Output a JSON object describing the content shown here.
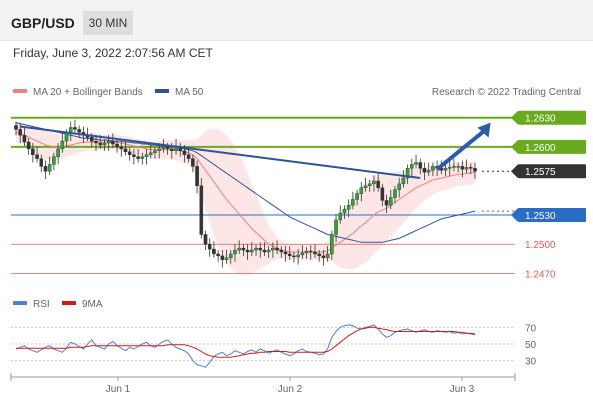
{
  "header": {
    "pair": "GBP/USD",
    "timeframe": "30 MIN"
  },
  "datetime": "Friday, June 3, 2022 2:07:56 AM CET",
  "legend": {
    "ma20_label": "MA 20 + Bollinger Bands",
    "ma50_label": "MA 50",
    "credit": "Research © 2022 Trading Central"
  },
  "colors": {
    "ma20": "#f08080",
    "ma50": "#2d5496",
    "resistance": "#6aaa1e",
    "support_pivot": "#2b6cc4",
    "support": "#e05a5a",
    "current": "#333333",
    "rsi": "#4f7fd8",
    "rsi_ma": "#d11c1c",
    "trend_arrow": "#2a5ca8"
  },
  "rsi_legend": {
    "rsi_label": "RSI",
    "ma_label": "9MA"
  },
  "chart_data": [
    {
      "type": "candlestick",
      "title": "GBP/USD 30 MIN",
      "x_labels": [
        "Jun 1",
        "Jun 2",
        "Jun 3"
      ],
      "ylim": [
        1.2455,
        1.264
      ],
      "levels": [
        {
          "label": "1.2630",
          "value": 1.263,
          "role": "resistance"
        },
        {
          "label": "1.2600",
          "value": 1.26,
          "role": "resistance"
        },
        {
          "label": "1.2575",
          "value": 1.2575,
          "role": "current"
        },
        {
          "label": "1.2530",
          "value": 1.253,
          "role": "pivot"
        },
        {
          "label": "1.2500",
          "value": 1.25,
          "role": "support"
        },
        {
          "label": "1.2470",
          "value": 1.247,
          "role": "support"
        }
      ],
      "close": [
        1.2618,
        1.2612,
        1.2605,
        1.2598,
        1.2592,
        1.2588,
        1.258,
        1.2575,
        1.2582,
        1.259,
        1.2598,
        1.2606,
        1.2614,
        1.262,
        1.2618,
        1.2615,
        1.2612,
        1.261,
        1.2606,
        1.2604,
        1.2602,
        1.2604,
        1.2606,
        1.2603,
        1.26,
        1.2598,
        1.2595,
        1.2592,
        1.259,
        1.2588,
        1.259,
        1.2592,
        1.2594,
        1.2596,
        1.2598,
        1.26,
        1.2598,
        1.2596,
        1.26,
        1.2596,
        1.2592,
        1.2588,
        1.258,
        1.256,
        1.251,
        1.25,
        1.2495,
        1.249,
        1.2488,
        1.2484,
        1.2486,
        1.249,
        1.2494,
        1.2496,
        1.2494,
        1.2492,
        1.2494,
        1.2496,
        1.2494,
        1.2492,
        1.2494,
        1.2496,
        1.2494,
        1.2492,
        1.249,
        1.2488,
        1.2487,
        1.2489,
        1.2491,
        1.2493,
        1.2492,
        1.249,
        1.2488,
        1.2486,
        1.249,
        1.251,
        1.2525,
        1.2532,
        1.2536,
        1.254,
        1.2546,
        1.2552,
        1.2558,
        1.256,
        1.2562,
        1.2565,
        1.2558,
        1.2545,
        1.254,
        1.2548,
        1.2556,
        1.2562,
        1.2568,
        1.2578,
        1.2582,
        1.2584,
        1.2578,
        1.2574,
        1.2576,
        1.258,
        1.2578,
        1.2576,
        1.2578,
        1.2579,
        1.258,
        1.258,
        1.2577,
        1.2579,
        1.2578,
        1.2575
      ],
      "ma20": [
        1.2615,
        1.2614,
        1.2612,
        1.261,
        1.2608,
        1.2606,
        1.2604,
        1.2602,
        1.2601,
        1.26,
        1.26,
        1.26,
        1.2601,
        1.2602,
        1.2603,
        1.2604,
        1.2605,
        1.2605,
        1.2605,
        1.2605,
        1.2605,
        1.2605,
        1.2605,
        1.2605,
        1.2605,
        1.2604,
        1.2603,
        1.2602,
        1.2601,
        1.26,
        1.2599,
        1.2598,
        1.2597,
        1.2597,
        1.2597,
        1.2597,
        1.2597,
        1.2597,
        1.2597,
        1.2596,
        1.2595,
        1.2594,
        1.2592,
        1.2588,
        1.2582,
        1.2576,
        1.257,
        1.2564,
        1.2558,
        1.2552,
        1.2546,
        1.2541,
        1.2536,
        1.2531,
        1.2526,
        1.2521,
        1.2516,
        1.2512,
        1.2508,
        1.2504,
        1.25,
        1.2498,
        1.2496,
        1.2494,
        1.2493,
        1.2492,
        1.2492,
        1.2492,
        1.2492,
        1.2492,
        1.2492,
        1.2492,
        1.2492,
        1.2492,
        1.2493,
        1.2496,
        1.2499,
        1.2502,
        1.2505,
        1.2508,
        1.2511,
        1.2515,
        1.2519,
        1.2522,
        1.2526,
        1.253,
        1.2533,
        1.2535,
        1.2537,
        1.254,
        1.2543,
        1.2546,
        1.2549,
        1.2552,
        1.2555,
        1.2558,
        1.256,
        1.2562,
        1.2564,
        1.2566,
        1.2567,
        1.2568,
        1.2569,
        1.257,
        1.2571,
        1.2572,
        1.2572,
        1.2573,
        1.2573,
        1.2574
      ],
      "ma50": [
        1.2625,
        1.2624,
        1.2623,
        1.2622,
        1.2621,
        1.262,
        1.2619,
        1.2618,
        1.2617,
        1.2616,
        1.2615,
        1.2614,
        1.2613,
        1.2612,
        1.2611,
        1.261,
        1.2609,
        1.2609,
        1.2608,
        1.2608,
        1.2607,
        1.2607,
        1.2607,
        1.2606,
        1.2606,
        1.2606,
        1.2605,
        1.2605,
        1.2604,
        1.2604,
        1.2603,
        1.2603,
        1.2602,
        1.2602,
        1.2601,
        1.2601,
        1.26,
        1.26,
        1.2599,
        1.2599,
        1.2598,
        1.2597,
        1.2596,
        1.2594,
        1.2591,
        1.2588,
        1.2585,
        1.2582,
        1.2579,
        1.2576,
        1.2573,
        1.257,
        1.2567,
        1.2564,
        1.2561,
        1.2558,
        1.2555,
        1.2552,
        1.2549,
        1.2546,
        1.2543,
        1.254,
        1.2537,
        1.2534,
        1.2531,
        1.2528,
        1.2526,
        1.2524,
        1.2522,
        1.252,
        1.2518,
        1.2516,
        1.2514,
        1.2512,
        1.251,
        1.2509,
        1.2508,
        1.2507,
        1.2506,
        1.2505,
        1.2504,
        1.2503,
        1.2502,
        1.2502,
        1.2502,
        1.2502,
        1.2502,
        1.2502,
        1.2503,
        1.2504,
        1.2505,
        1.2506,
        1.2508,
        1.251,
        1.2512,
        1.2514,
        1.2516,
        1.2518,
        1.252,
        1.2522,
        1.2524,
        1.2526,
        1.2527,
        1.2528,
        1.2529,
        1.253,
        1.2531,
        1.2532,
        1.2533,
        1.2534
      ],
      "band_halfwidth": [
        0.001,
        0.001,
        0.0011,
        0.0012,
        0.0013,
        0.0013,
        0.0014,
        0.0015,
        0.0015,
        0.0014,
        0.0013,
        0.0012,
        0.0011,
        0.0011,
        0.0011,
        0.001,
        0.001,
        0.0009,
        0.0009,
        0.0009,
        0.0008,
        0.0008,
        0.0008,
        0.0008,
        0.0008,
        0.0008,
        0.0008,
        0.0008,
        0.0008,
        0.0008,
        0.0008,
        0.0008,
        0.0008,
        0.0009,
        0.0009,
        0.001,
        0.001,
        0.001,
        0.0011,
        0.0011,
        0.0012,
        0.0013,
        0.0015,
        0.002,
        0.003,
        0.004,
        0.0048,
        0.0055,
        0.006,
        0.0064,
        0.0066,
        0.0066,
        0.0065,
        0.0062,
        0.0058,
        0.0052,
        0.0046,
        0.004,
        0.0033,
        0.0026,
        0.002,
        0.0015,
        0.0011,
        0.0009,
        0.0008,
        0.0008,
        0.0008,
        0.0008,
        0.0008,
        0.0008,
        0.0008,
        0.0008,
        0.0008,
        0.0008,
        0.001,
        0.0014,
        0.002,
        0.0026,
        0.003,
        0.0034,
        0.0037,
        0.0039,
        0.004,
        0.0041,
        0.0041,
        0.004,
        0.0039,
        0.0037,
        0.0035,
        0.0033,
        0.0031,
        0.0029,
        0.0027,
        0.0025,
        0.0023,
        0.0021,
        0.0019,
        0.0017,
        0.0016,
        0.0015,
        0.0014,
        0.0013,
        0.0013,
        0.0013,
        0.0012,
        0.0012,
        0.0012,
        0.0012,
        0.0012,
        0.0012
      ],
      "trendline": {
        "from": [
          1,
          1.2621
        ],
        "to": [
          96,
          1.2568
        ]
      },
      "arrow": {
        "from": [
          100,
          1.2577
        ],
        "to": [
          107,
          1.2625
        ]
      }
    },
    {
      "type": "line",
      "title": "RSI",
      "ylim": [
        20,
        80
      ],
      "gridlines": [
        70,
        50,
        30
      ],
      "tick_labels": [
        "70",
        "50",
        "30"
      ],
      "series": [
        {
          "name": "RSI",
          "values": [
            44,
            46,
            48,
            44,
            42,
            40,
            43,
            46,
            48,
            44,
            42,
            40,
            45,
            52,
            50,
            47,
            44,
            50,
            55,
            48,
            46,
            44,
            50,
            53,
            48,
            45,
            42,
            46,
            44,
            47,
            50,
            52,
            48,
            46,
            50,
            53,
            55,
            50,
            46,
            44,
            42,
            38,
            30,
            25,
            24,
            22,
            28,
            35,
            38,
            40,
            36,
            38,
            42,
            40,
            38,
            41,
            43,
            40,
            44,
            42,
            39,
            41,
            43,
            40,
            38,
            36,
            38,
            42,
            44,
            41,
            40,
            39,
            37,
            38,
            44,
            58,
            65,
            70,
            72,
            73,
            72,
            69,
            68,
            70,
            71,
            73,
            68,
            62,
            58,
            60,
            64,
            66,
            67,
            68,
            66,
            64,
            66,
            67,
            65,
            64,
            66,
            65,
            64,
            65,
            63,
            64,
            62,
            63,
            62,
            61
          ]
        },
        {
          "name": "9MA",
          "values": [
            45,
            45,
            45,
            45,
            45,
            45,
            45,
            45,
            45,
            45,
            45,
            45,
            45,
            46,
            46,
            46,
            46,
            47,
            48,
            48,
            48,
            48,
            48,
            48,
            48,
            48,
            48,
            48,
            48,
            48,
            48,
            48,
            48,
            48,
            48,
            48,
            49,
            49,
            49,
            49,
            49,
            48,
            46,
            44,
            41,
            38,
            36,
            35,
            34,
            34,
            34,
            34,
            35,
            36,
            37,
            38,
            39,
            39,
            40,
            40,
            41,
            41,
            41,
            41,
            41,
            40,
            40,
            40,
            40,
            40,
            40,
            40,
            40,
            40,
            41,
            44,
            48,
            52,
            56,
            60,
            63,
            66,
            68,
            69,
            70,
            70,
            69,
            68,
            67,
            66,
            65,
            65,
            65,
            65,
            65,
            65,
            65,
            65,
            65,
            65,
            65,
            65,
            65,
            65,
            65,
            64,
            64,
            63,
            63,
            62
          ]
        }
      ]
    }
  ]
}
